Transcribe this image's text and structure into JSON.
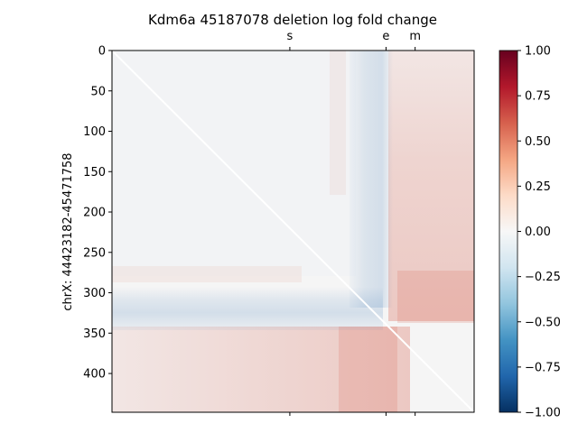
{
  "chart_data": {
    "type": "heatmap",
    "title": "Kdm6a 45187078 deletion log fold change",
    "ylabel": "chrX: 44423182-45471758",
    "xlim": [
      0,
      448
    ],
    "ylim": [
      448,
      0
    ],
    "y_ticks": [
      0,
      50,
      100,
      150,
      200,
      250,
      300,
      350,
      400
    ],
    "top_ticks": [
      {
        "label": "s",
        "value": 220
      },
      {
        "label": "e",
        "value": 339
      },
      {
        "label": "m",
        "value": 375
      }
    ],
    "colorbar": {
      "colormap": "RdBu_r",
      "min": -1.0,
      "max": 1.0,
      "ticks": [
        "1.00",
        "0.75",
        "0.50",
        "0.25",
        "0.00",
        "−0.25",
        "−0.50",
        "−0.75",
        "−1.00"
      ],
      "tick_values": [
        1.0,
        0.75,
        0.5,
        0.25,
        0.0,
        -0.25,
        -0.5,
        -0.75,
        -1.0
      ]
    },
    "features": {
      "diagonal_masked": true,
      "deletion_bin": 339,
      "blue_band_bins": [
        305,
        350
      ],
      "red_region_after_bin": 350
    }
  }
}
